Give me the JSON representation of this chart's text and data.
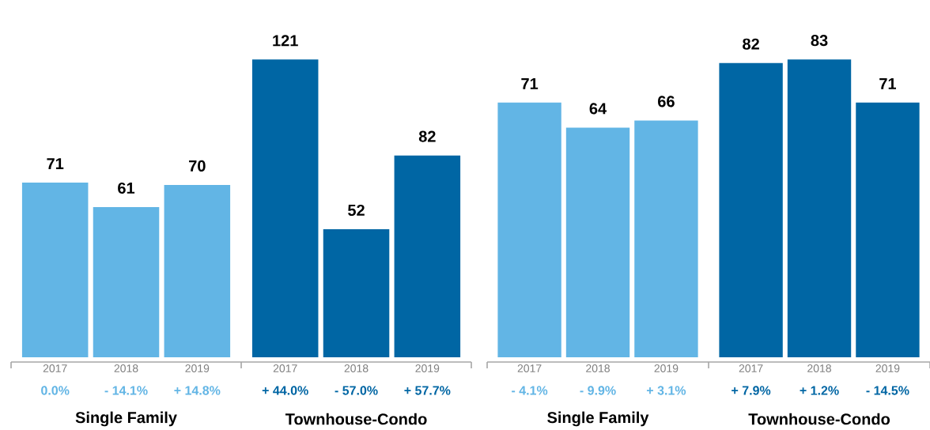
{
  "chart_data": [
    {
      "type": "bar",
      "categories": [
        "2017",
        "2018",
        "2019",
        "2017",
        "2018",
        "2019"
      ],
      "values": [
        71,
        61,
        70,
        121,
        52,
        82
      ],
      "colors": [
        "#62b5e5",
        "#62b5e5",
        "#62b5e5",
        "#0066a4",
        "#0066a4",
        "#0066a4"
      ],
      "data_labels": true,
      "annotations": [
        "0.0%",
        "- 14.1%",
        "+ 14.8%",
        "+ 44.0%",
        "- 57.0%",
        "+ 57.7%",
        "Single Family",
        "Townhouse-Condo"
      ]
    },
    {
      "type": "bar",
      "categories": [
        "2017",
        "2018",
        "2019",
        "2017",
        "2018",
        "2019"
      ],
      "values": [
        71,
        64,
        66,
        82,
        83,
        71
      ],
      "colors": [
        "#62b5e5",
        "#62b5e5",
        "#62b5e5",
        "#0066a4",
        "#0066a4",
        "#0066a4"
      ],
      "data_labels": true,
      "annotations": [
        "- 4.1%",
        "- 9.9%",
        "+ 3.1%",
        "+ 7.9%",
        "+ 1.2%",
        "- 14.5%",
        "Single Family",
        "Townhouse-Condo"
      ]
    }
  ]
}
